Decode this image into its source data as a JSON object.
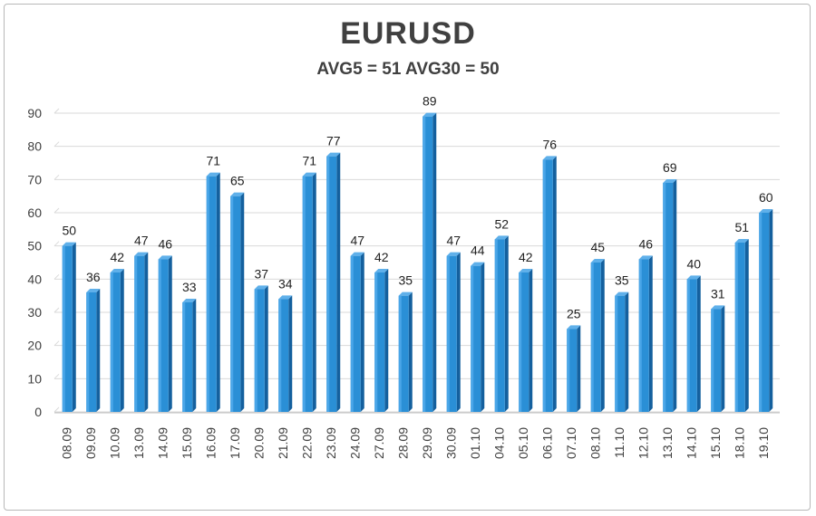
{
  "chart_data": {
    "type": "bar",
    "title": "EURUSD",
    "subtitle": "AVG5 = 51 AVG30 = 50",
    "categories": [
      "08.09",
      "09.09",
      "10.09",
      "13.09",
      "14.09",
      "15.09",
      "16.09",
      "17.09",
      "20.09",
      "21.09",
      "22.09",
      "23.09",
      "24.09",
      "27.09",
      "28.09",
      "29.09",
      "30.09",
      "01.10",
      "04.10",
      "05.10",
      "06.10",
      "07.10",
      "08.10",
      "11.10",
      "12.10",
      "13.10",
      "14.10",
      "15.10",
      "18.10",
      "19.10"
    ],
    "values": [
      50,
      36,
      42,
      47,
      46,
      33,
      71,
      65,
      37,
      34,
      71,
      77,
      47,
      42,
      35,
      89,
      47,
      44,
      52,
      42,
      76,
      25,
      45,
      35,
      46,
      69,
      40,
      31,
      51,
      60
    ],
    "ylim": [
      0,
      90
    ],
    "yticks": [
      0,
      10,
      20,
      30,
      40,
      50,
      60,
      70,
      80,
      90
    ],
    "grid": true,
    "bar_color": "#2a8fd6",
    "bar_color_dark": "#14609e",
    "bar_style": "3d"
  }
}
